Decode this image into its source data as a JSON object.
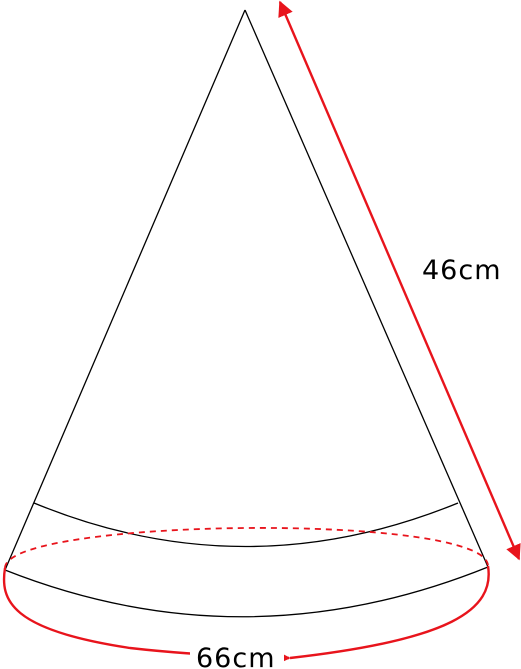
{
  "diagram": {
    "slant_label": "46cm",
    "circumference_label": "66cm",
    "colors": {
      "outline": "#000000",
      "measure": "#e8141c",
      "background": "#ffffff"
    }
  }
}
